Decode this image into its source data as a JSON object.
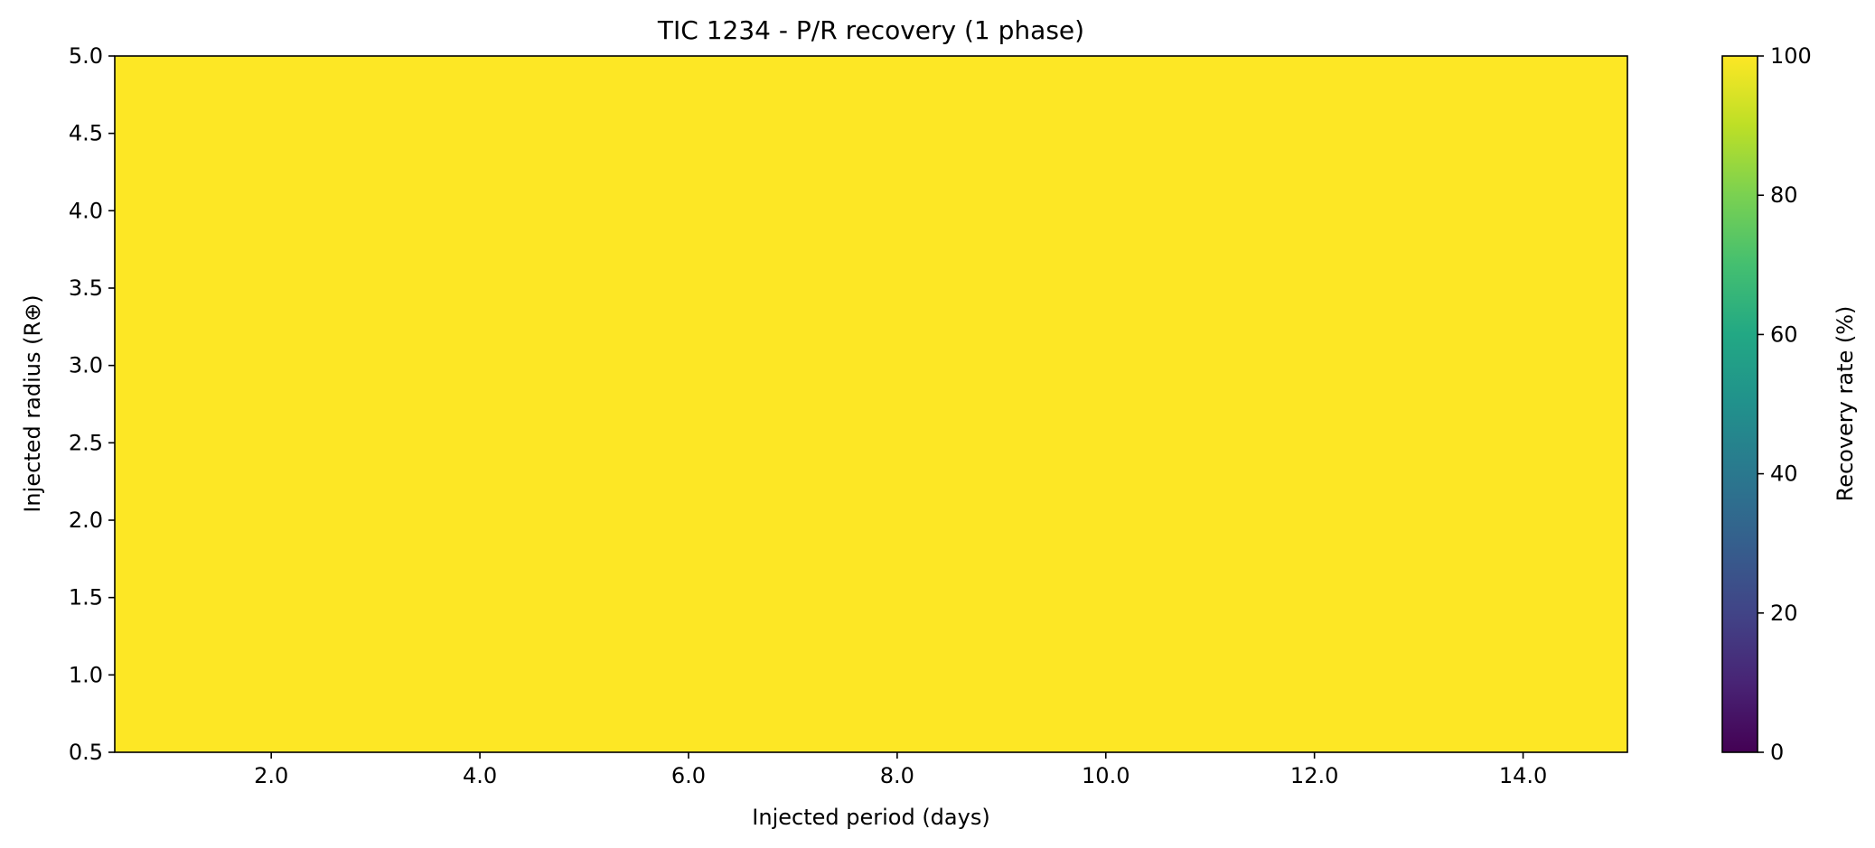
{
  "chart_data": {
    "type": "heatmap",
    "title": "TIC 1234 - P/R recovery (1 phase)",
    "xlabel": "Injected period (days)",
    "ylabel": "Injected radius (R⊕)",
    "xlim": [
      0.5,
      15.0
    ],
    "ylim": [
      0.5,
      5.0
    ],
    "x_ticks": [
      2.0,
      4.0,
      6.0,
      8.0,
      10.0,
      12.0,
      14.0
    ],
    "x_tick_labels": [
      "2.0",
      "4.0",
      "6.0",
      "8.0",
      "10.0",
      "12.0",
      "14.0"
    ],
    "y_ticks": [
      0.5,
      1.0,
      1.5,
      2.0,
      2.5,
      3.0,
      3.5,
      4.0,
      4.5,
      5.0
    ],
    "y_tick_labels": [
      "0.5",
      "1.0",
      "1.5",
      "2.0",
      "2.5",
      "3.0",
      "3.5",
      "4.0",
      "4.5",
      "5.0"
    ],
    "cells": [
      {
        "x_range": [
          0.5,
          15.0
        ],
        "y_range": [
          0.5,
          5.0
        ],
        "value": 100
      }
    ],
    "colorbar": {
      "label": "Recovery rate (%)",
      "colormap": "viridis",
      "range": [
        0,
        100
      ],
      "ticks": [
        0,
        20,
        40,
        60,
        80,
        100
      ],
      "tick_labels": [
        "0",
        "20",
        "40",
        "60",
        "80",
        "100"
      ]
    },
    "colors": {
      "viridis_stops": [
        "#440154",
        "#482475",
        "#414487",
        "#355f8d",
        "#2a788e",
        "#21918c",
        "#22a884",
        "#44bf70",
        "#7ad151",
        "#bddf26",
        "#fde725"
      ],
      "axis": "#000000",
      "background": "#ffffff"
    }
  }
}
